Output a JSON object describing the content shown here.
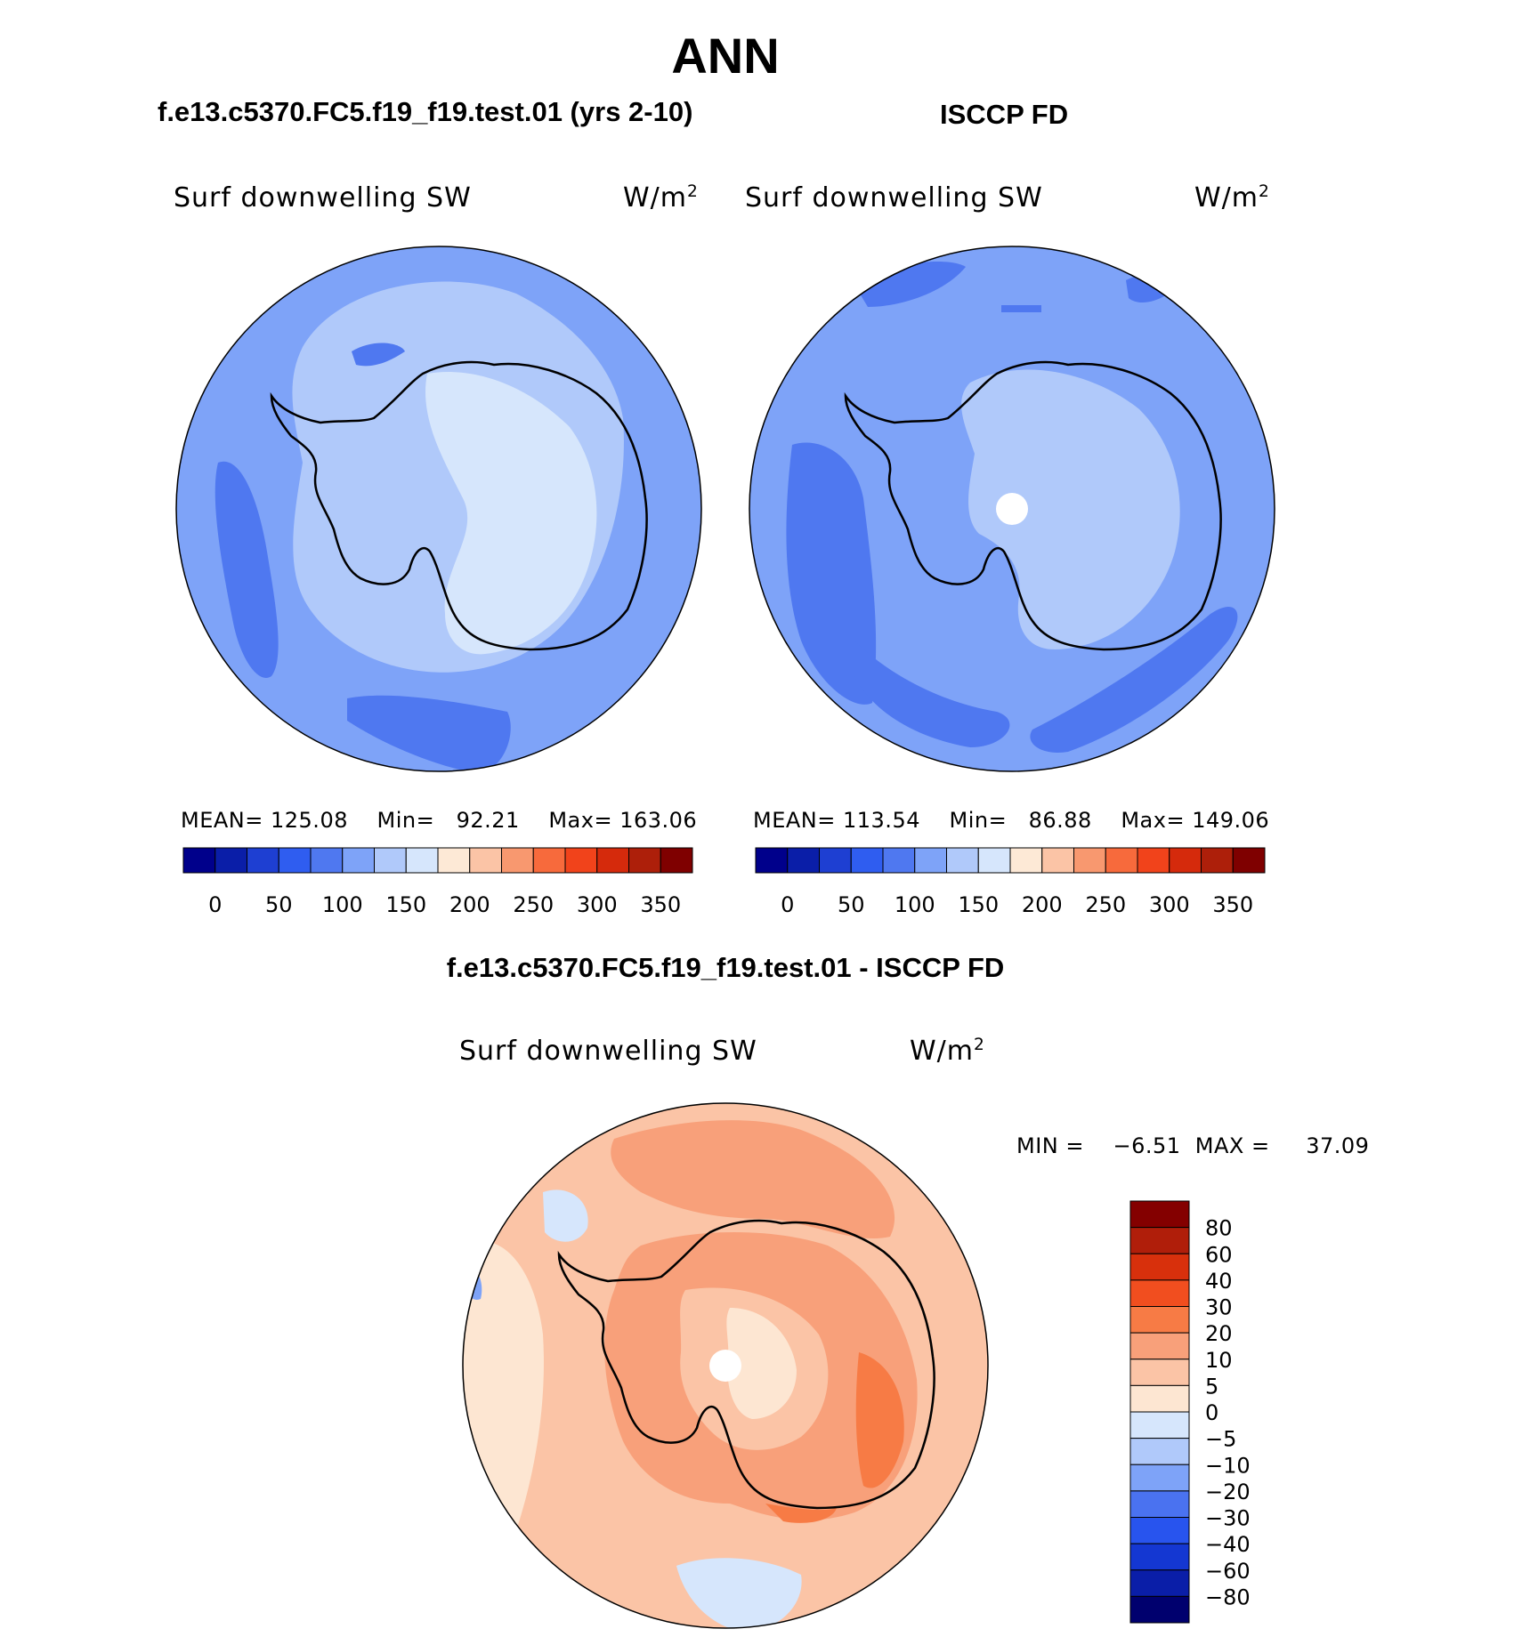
{
  "page": {
    "season_title": "ANN"
  },
  "panels": {
    "model": {
      "title": "f.e13.c5370.FC5.f19_f19.test.01 (yrs 2-10)",
      "variable": "Surf downwelling SW",
      "units": "W/m",
      "units_exp": "2",
      "mean_label": "MEAN=",
      "mean": "125.08",
      "min_label": "Min=",
      "min": "92.21",
      "max_label": "Max=",
      "max": "163.06"
    },
    "obs": {
      "title": "ISCCP FD",
      "variable": "Surf downwelling SW",
      "units": "W/m",
      "units_exp": "2",
      "mean_label": "MEAN=",
      "mean": "113.54",
      "min_label": "Min=",
      "min": "86.88",
      "max_label": "Max=",
      "max": "149.06"
    },
    "diff": {
      "title": "f.e13.c5370.FC5.f19_f19.test.01 - ISCCP FD",
      "variable": "Surf downwelling SW",
      "units": "W/m",
      "units_exp": "2",
      "minmax": "MIN =    −6.51  MAX =     37.09"
    }
  },
  "chart_data": [
    {
      "type": "heatmap",
      "name": "model",
      "projection": "south polar stereographic",
      "title": "f.e13.c5370.FC5.f19_f19.test.01 (yrs 2-10)",
      "variable": "Surf downwelling SW",
      "units": "W/m2",
      "mean": 125.08,
      "min": 92.21,
      "max": 163.06,
      "colorbar_levels": [
        0,
        25,
        50,
        75,
        100,
        125,
        150,
        175,
        200,
        225,
        250,
        275,
        300,
        325,
        350
      ],
      "colorbar_tick_labels": [
        "0",
        "50",
        "100",
        "150",
        "200",
        "250",
        "300",
        "350"
      ],
      "colorbar_colors": [
        "#00008b",
        "#0a1ea8",
        "#1e3fd2",
        "#2f5df0",
        "#4f78f0",
        "#7ea3f8",
        "#b0c9fa",
        "#d6e6fc",
        "#fde9d6",
        "#fbc4a6",
        "#f8986f",
        "#f76a3c",
        "#f1431b",
        "#d52a0c",
        "#ad1f0a",
        "#7f0000"
      ]
    },
    {
      "type": "heatmap",
      "name": "obs",
      "projection": "south polar stereographic",
      "title": "ISCCP FD",
      "variable": "Surf downwelling SW",
      "units": "W/m2",
      "mean": 113.54,
      "min": 86.88,
      "max": 149.06,
      "colorbar_levels": [
        0,
        25,
        50,
        75,
        100,
        125,
        150,
        175,
        200,
        225,
        250,
        275,
        300,
        325,
        350
      ],
      "colorbar_tick_labels": [
        "0",
        "50",
        "100",
        "150",
        "200",
        "250",
        "300",
        "350"
      ],
      "colorbar_colors": [
        "#00008b",
        "#0a1ea8",
        "#1e3fd2",
        "#2f5df0",
        "#4f78f0",
        "#7ea3f8",
        "#b0c9fa",
        "#d6e6fc",
        "#fde9d6",
        "#fbc4a6",
        "#f8986f",
        "#f76a3c",
        "#f1431b",
        "#d52a0c",
        "#ad1f0a",
        "#7f0000"
      ]
    },
    {
      "type": "heatmap",
      "name": "difference",
      "projection": "south polar stereographic",
      "title": "f.e13.c5370.FC5.f19_f19.test.01 - ISCCP FD",
      "variable": "Surf downwelling SW",
      "units": "W/m2",
      "min": -6.51,
      "max": 37.09,
      "colorbar_levels": [
        -80,
        -60,
        -40,
        -30,
        -20,
        -10,
        -5,
        0,
        5,
        10,
        20,
        30,
        40,
        60,
        80
      ],
      "colorbar_tick_labels": [
        "−80",
        "−60",
        "−40",
        "−30",
        "−20",
        "−10",
        "−5",
        "0",
        "5",
        "10",
        "20",
        "30",
        "40",
        "60",
        "80"
      ],
      "colorbar_colors": [
        "#00006e",
        "#0a1ea8",
        "#1437d2",
        "#2854ee",
        "#4a72f0",
        "#7ea3f8",
        "#b0c9fa",
        "#d6e6fc",
        "#fde6d2",
        "#fbc4a6",
        "#f8a07a",
        "#f77b45",
        "#f14e1f",
        "#d8300c",
        "#b01e0a",
        "#840000"
      ]
    }
  ]
}
